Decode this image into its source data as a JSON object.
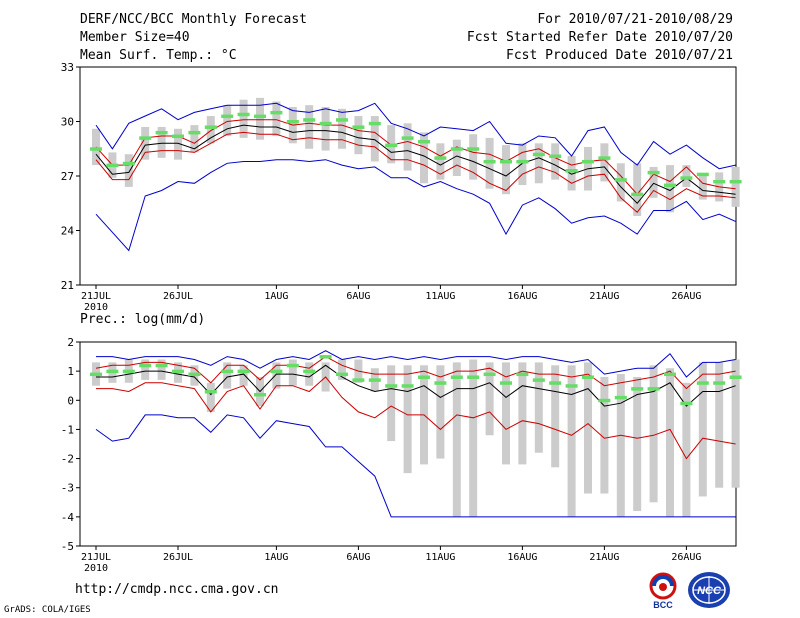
{
  "header": {
    "model_title": "DERF/NCC/BCC Monthly Forecast",
    "member_size": "Member Size=40",
    "variable": "Mean Surf. Temp.: °C",
    "forecast_period": "For 2010/07/21-2010/08/29",
    "started_refer": "Fcst Started Refer Date 2010/07/20",
    "produced": "Fcst Produced Date 2010/07/21"
  },
  "footer": {
    "url": "http://cmdp.ncc.cma.gov.cn",
    "grads": "GrADS: COLA/IGES",
    "logo_left_text": "BCC",
    "logo_right_text": "NCC"
  },
  "colors": {
    "box": "#cccccc",
    "median": "#66dd66",
    "mean": "#000000",
    "std": "#cc0000",
    "range": "#0000cc",
    "axis": "#000000"
  },
  "chart_data": [
    {
      "type": "box-spread",
      "title": "Mean Surf. Temp.: °C",
      "xlabel": "",
      "ylabel": "",
      "ylim": [
        21,
        33
      ],
      "yticks": [
        21,
        24,
        27,
        30,
        33
      ],
      "ytick_labels": [
        "21",
        "24",
        "27",
        "30",
        "33"
      ],
      "x_ticks": [
        {
          "day": 1,
          "label": "21JUL",
          "sub": "2010"
        },
        {
          "day": 6,
          "label": "26JUL",
          "sub": ""
        },
        {
          "day": 12,
          "label": "1AUG",
          "sub": ""
        },
        {
          "day": 17,
          "label": "6AUG",
          "sub": ""
        },
        {
          "day": 22,
          "label": "11AUG",
          "sub": ""
        },
        {
          "day": 27,
          "label": "16AUG",
          "sub": ""
        },
        {
          "day": 32,
          "label": "21AUG",
          "sub": ""
        },
        {
          "day": 37,
          "label": "26AUG",
          "sub": ""
        }
      ],
      "days": [
        1,
        2,
        3,
        4,
        5,
        6,
        7,
        8,
        9,
        10,
        11,
        12,
        13,
        14,
        15,
        16,
        17,
        18,
        19,
        20,
        21,
        22,
        23,
        24,
        25,
        26,
        27,
        28,
        29,
        30,
        31,
        32,
        33,
        34,
        35,
        36,
        37,
        38,
        39,
        40
      ],
      "box_low": [
        27.6,
        26.9,
        26.4,
        27.9,
        28.0,
        27.9,
        28.3,
        28.8,
        29.2,
        29.1,
        29.0,
        29.2,
        28.8,
        28.5,
        28.4,
        28.5,
        28.2,
        27.8,
        27.7,
        27.3,
        26.6,
        26.8,
        27.0,
        26.8,
        26.3,
        26.0,
        26.5,
        26.6,
        26.8,
        26.2,
        26.2,
        26.7,
        25.6,
        24.8,
        25.8,
        25.0,
        26.4,
        25.7,
        25.6,
        25.3
      ],
      "box_high": [
        29.6,
        28.3,
        28.2,
        29.7,
        29.7,
        29.6,
        29.8,
        30.3,
        30.9,
        31.2,
        31.3,
        31.1,
        30.8,
        30.9,
        30.8,
        30.7,
        30.3,
        30.3,
        29.8,
        29.9,
        29.4,
        28.8,
        29.0,
        29.3,
        29.1,
        28.7,
        28.8,
        28.8,
        28.8,
        28.1,
        28.6,
        28.8,
        27.7,
        27.7,
        27.5,
        27.6,
        27.6,
        27.1,
        27.2,
        27.5
      ],
      "median": [
        28.5,
        27.6,
        27.7,
        29.1,
        29.4,
        29.2,
        29.4,
        29.7,
        30.3,
        30.4,
        30.3,
        30.5,
        30.0,
        30.1,
        29.9,
        30.1,
        29.7,
        29.9,
        28.7,
        29.1,
        28.9,
        28.0,
        28.5,
        28.5,
        27.8,
        27.8,
        27.8,
        28.2,
        28.1,
        27.3,
        27.8,
        28.0,
        26.8,
        26.0,
        27.2,
        26.5,
        26.9,
        27.1,
        26.7,
        26.7
      ],
      "mean": [
        28.2,
        27.1,
        27.2,
        28.7,
        28.8,
        28.8,
        28.5,
        29.1,
        29.6,
        29.8,
        29.7,
        29.7,
        29.4,
        29.5,
        29.5,
        29.4,
        29.1,
        29.0,
        28.3,
        28.4,
        28.1,
        27.6,
        28.1,
        27.8,
        27.4,
        27.0,
        27.7,
        28.0,
        27.6,
        27.1,
        27.4,
        27.5,
        26.4,
        25.5,
        26.6,
        26.2,
        26.9,
        26.2,
        26.1,
        26.0
      ],
      "std_low": [
        27.9,
        26.8,
        26.8,
        28.3,
        28.4,
        28.4,
        28.3,
        28.8,
        29.3,
        29.4,
        29.3,
        29.3,
        29.0,
        29.1,
        29.0,
        29.0,
        28.7,
        28.6,
        27.9,
        27.9,
        27.6,
        27.1,
        27.6,
        27.2,
        26.6,
        26.2,
        27.1,
        27.5,
        27.2,
        26.6,
        27.0,
        27.1,
        25.8,
        25.0,
        26.2,
        25.7,
        26.3,
        25.9,
        25.9,
        25.8
      ],
      "std_high": [
        28.6,
        27.6,
        27.6,
        29.1,
        29.2,
        29.2,
        28.8,
        29.5,
        30.0,
        30.1,
        30.1,
        30.1,
        29.8,
        29.9,
        29.8,
        29.8,
        29.5,
        29.4,
        28.7,
        28.9,
        28.6,
        28.1,
        28.6,
        28.3,
        28.2,
        27.8,
        28.3,
        28.5,
        28.0,
        27.6,
        27.8,
        27.9,
        27.0,
        26.0,
        27.1,
        26.7,
        27.5,
        26.6,
        26.4,
        26.3
      ],
      "range_low": [
        24.9,
        23.9,
        22.9,
        25.9,
        26.2,
        26.7,
        26.6,
        27.2,
        27.7,
        27.8,
        27.8,
        27.9,
        27.9,
        27.8,
        27.9,
        27.6,
        27.4,
        27.5,
        26.9,
        26.9,
        26.4,
        26.7,
        26.3,
        26.0,
        25.5,
        23.8,
        25.4,
        25.8,
        25.2,
        24.4,
        24.7,
        24.8,
        24.4,
        23.8,
        25.1,
        25.1,
        25.6,
        24.6,
        24.9,
        24.5
      ],
      "range_high": [
        29.8,
        28.5,
        29.9,
        30.3,
        30.7,
        30.1,
        30.5,
        30.7,
        30.9,
        30.9,
        30.9,
        31.0,
        30.6,
        30.5,
        30.7,
        30.5,
        30.6,
        31.0,
        29.9,
        29.6,
        29.2,
        29.7,
        29.6,
        29.5,
        30.0,
        28.8,
        28.7,
        29.2,
        29.1,
        28.1,
        29.5,
        29.7,
        28.3,
        27.6,
        28.9,
        28.2,
        28.7,
        28.0,
        27.4,
        27.6
      ]
    },
    {
      "type": "box-spread",
      "title": "Prec.: log(mm/d)",
      "xlabel": "",
      "ylabel": "",
      "ylim": [
        -5,
        2
      ],
      "yticks": [
        -5,
        -4,
        -3,
        -2,
        -1,
        0,
        1,
        2
      ],
      "ytick_labels": [
        "-5",
        "-4",
        "-3",
        "-2",
        "-1",
        "0",
        "1",
        "2"
      ],
      "x_ticks": [
        {
          "day": 1,
          "label": "21JUL",
          "sub": "2010"
        },
        {
          "day": 6,
          "label": "26JUL",
          "sub": ""
        },
        {
          "day": 12,
          "label": "1AUG",
          "sub": ""
        },
        {
          "day": 17,
          "label": "6AUG",
          "sub": ""
        },
        {
          "day": 22,
          "label": "11AUG",
          "sub": ""
        },
        {
          "day": 27,
          "label": "16AUG",
          "sub": ""
        },
        {
          "day": 32,
          "label": "21AUG",
          "sub": ""
        },
        {
          "day": 37,
          "label": "26AUG",
          "sub": ""
        }
      ],
      "days": [
        1,
        2,
        3,
        4,
        5,
        6,
        7,
        8,
        9,
        10,
        11,
        12,
        13,
        14,
        15,
        16,
        17,
        18,
        19,
        20,
        21,
        22,
        23,
        24,
        25,
        26,
        27,
        28,
        29,
        30,
        31,
        32,
        33,
        34,
        35,
        36,
        37,
        38,
        39,
        40
      ],
      "box_low": [
        0.5,
        0.6,
        0.6,
        0.7,
        0.7,
        0.6,
        0.5,
        -0.4,
        0.4,
        0.5,
        -0.2,
        0.4,
        0.5,
        0.5,
        0.3,
        0.7,
        0.6,
        0.3,
        -1.4,
        -2.5,
        -2.2,
        -2.0,
        -4.0,
        -4.0,
        -1.2,
        -2.2,
        -2.2,
        -1.8,
        -2.3,
        -4.0,
        -3.2,
        -3.2,
        -4.0,
        -3.8,
        -3.5,
        -4.0,
        -4.0,
        -3.3,
        -3.0,
        -3.0
      ],
      "box_high": [
        1.3,
        1.3,
        1.4,
        1.4,
        1.4,
        1.3,
        1.2,
        0.6,
        1.3,
        1.2,
        0.8,
        1.3,
        1.4,
        1.3,
        1.3,
        1.4,
        1.4,
        1.1,
        1.2,
        1.2,
        1.2,
        1.2,
        1.3,
        1.4,
        1.3,
        1.3,
        1.3,
        1.3,
        1.2,
        1.2,
        1.3,
        0.8,
        0.9,
        0.8,
        1.2,
        1.1,
        0.6,
        1.3,
        1.3,
        1.4
      ],
      "median": [
        0.9,
        1.0,
        1.0,
        1.2,
        1.2,
        1.0,
        0.9,
        0.3,
        1.0,
        1.0,
        0.2,
        1.0,
        1.2,
        1.0,
        1.5,
        0.9,
        0.7,
        0.7,
        0.5,
        0.5,
        0.8,
        0.6,
        0.8,
        0.8,
        0.9,
        0.6,
        0.9,
        0.7,
        0.6,
        0.5,
        0.8,
        0.0,
        0.1,
        0.4,
        0.4,
        0.9,
        -0.1,
        0.6,
        0.6,
        0.8
      ],
      "mean": [
        0.8,
        0.8,
        0.9,
        1.0,
        1.0,
        0.9,
        0.8,
        0.2,
        0.8,
        0.9,
        0.3,
        0.9,
        0.9,
        0.8,
        1.2,
        0.8,
        0.5,
        0.3,
        0.4,
        0.3,
        0.5,
        0.1,
        0.4,
        0.4,
        0.6,
        0.1,
        0.5,
        0.4,
        0.3,
        0.2,
        0.4,
        -0.2,
        -0.1,
        0.2,
        0.3,
        0.6,
        -0.2,
        0.3,
        0.3,
        0.5
      ],
      "std_low": [
        0.4,
        0.4,
        0.3,
        0.6,
        0.6,
        0.5,
        0.4,
        -0.4,
        0.3,
        0.5,
        -0.3,
        0.5,
        0.5,
        0.3,
        0.8,
        0.1,
        -0.4,
        -0.6,
        -0.2,
        -0.5,
        -0.5,
        -1.0,
        -0.5,
        -0.6,
        -0.4,
        -1.0,
        -0.7,
        -0.8,
        -1.0,
        -1.2,
        -0.8,
        -1.3,
        -1.2,
        -1.3,
        -1.2,
        -1.0,
        -2.0,
        -1.3,
        -1.4,
        -1.5
      ],
      "std_high": [
        1.1,
        1.2,
        1.2,
        1.3,
        1.3,
        1.2,
        1.1,
        0.6,
        1.2,
        1.2,
        0.7,
        1.2,
        1.2,
        1.1,
        1.5,
        1.2,
        1.0,
        0.9,
        0.9,
        0.9,
        1.0,
        0.8,
        1.0,
        1.0,
        1.1,
        0.8,
        1.0,
        0.9,
        0.9,
        0.8,
        0.9,
        0.5,
        0.6,
        0.7,
        0.8,
        1.0,
        0.4,
        0.9,
        0.9,
        1.0
      ],
      "range_low": [
        -1.0,
        -1.4,
        -1.3,
        -0.5,
        -0.5,
        -0.6,
        -0.6,
        -1.1,
        -0.5,
        -0.6,
        -1.3,
        -0.7,
        -0.8,
        -0.9,
        -1.6,
        -1.6,
        -2.1,
        -2.6,
        -4.0,
        -4.0,
        -4.0,
        -4.0,
        -4.0,
        -4.0,
        -4.0,
        -4.0,
        -4.0,
        -4.0,
        -4.0,
        -4.0,
        -4.0,
        -4.0,
        -4.0,
        -4.0,
        -4.0,
        -4.0,
        -4.0,
        -4.0,
        -4.0,
        -4.0
      ],
      "range_high": [
        1.5,
        1.5,
        1.4,
        1.5,
        1.5,
        1.5,
        1.4,
        1.2,
        1.5,
        1.4,
        1.1,
        1.4,
        1.5,
        1.4,
        1.7,
        1.4,
        1.5,
        1.4,
        1.5,
        1.4,
        1.5,
        1.4,
        1.5,
        1.5,
        1.5,
        1.4,
        1.5,
        1.5,
        1.4,
        1.3,
        1.4,
        0.9,
        1.0,
        1.1,
        1.1,
        1.6,
        0.8,
        1.3,
        1.3,
        1.4
      ]
    }
  ]
}
